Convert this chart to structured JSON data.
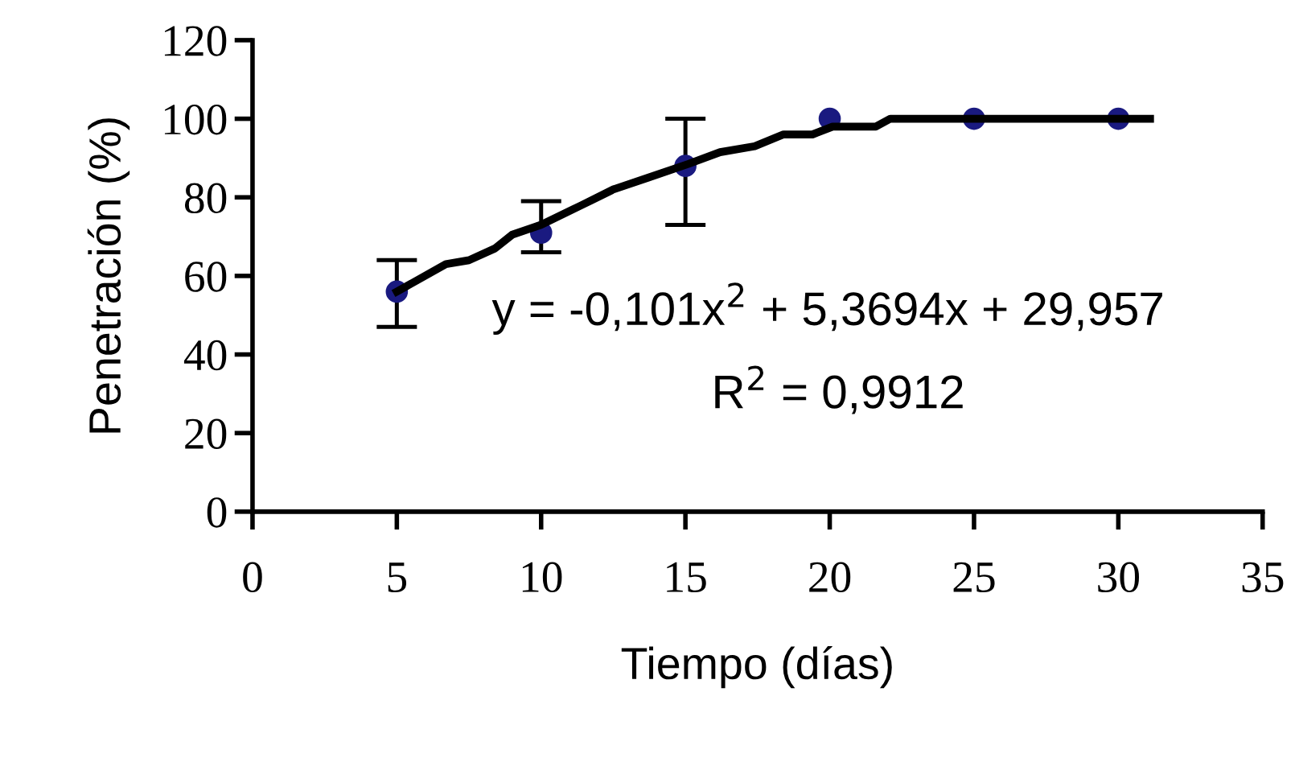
{
  "chart_data": {
    "type": "scatter",
    "xlabel": "Tiempo (días)",
    "ylabel": "Penetración (%)",
    "xlim": [
      0,
      35
    ],
    "xticks": [
      0,
      5,
      10,
      15,
      20,
      25,
      30,
      35
    ],
    "ylim": [
      0,
      120
    ],
    "yticks": [
      0,
      20,
      40,
      60,
      80,
      100,
      120
    ],
    "grid": false,
    "legend": false,
    "series": [
      {
        "color": "#1a1a80",
        "marker": "circle",
        "x": [
          5,
          10,
          15,
          20,
          25,
          30
        ],
        "values": [
          56,
          71,
          88,
          100,
          100,
          100
        ],
        "errors": [
          [
            47,
            64
          ],
          [
            66,
            79
          ],
          [
            73,
            100
          ],
          null,
          null,
          null
        ]
      },
      {
        "type": "line",
        "color": "#000000",
        "marker": "none",
        "line_style": "solid",
        "x": [
          5,
          6.7,
          7.5,
          8.4,
          9,
          10,
          11.4,
          12.5,
          13.7,
          15.1,
          16.2,
          17.4,
          18.4,
          19.4,
          20.1,
          21.6,
          22.1,
          31.1
        ],
        "values": [
          56,
          63,
          64,
          67,
          70.5,
          73,
          78,
          82,
          85,
          88.5,
          91.5,
          93,
          96,
          96,
          98,
          98,
          100,
          100
        ]
      }
    ],
    "annotations": [
      "y = -0,101x$^{2}$ + 5,3694x + 29,957",
      "R$^{2}$ = 0,9912"
    ]
  }
}
